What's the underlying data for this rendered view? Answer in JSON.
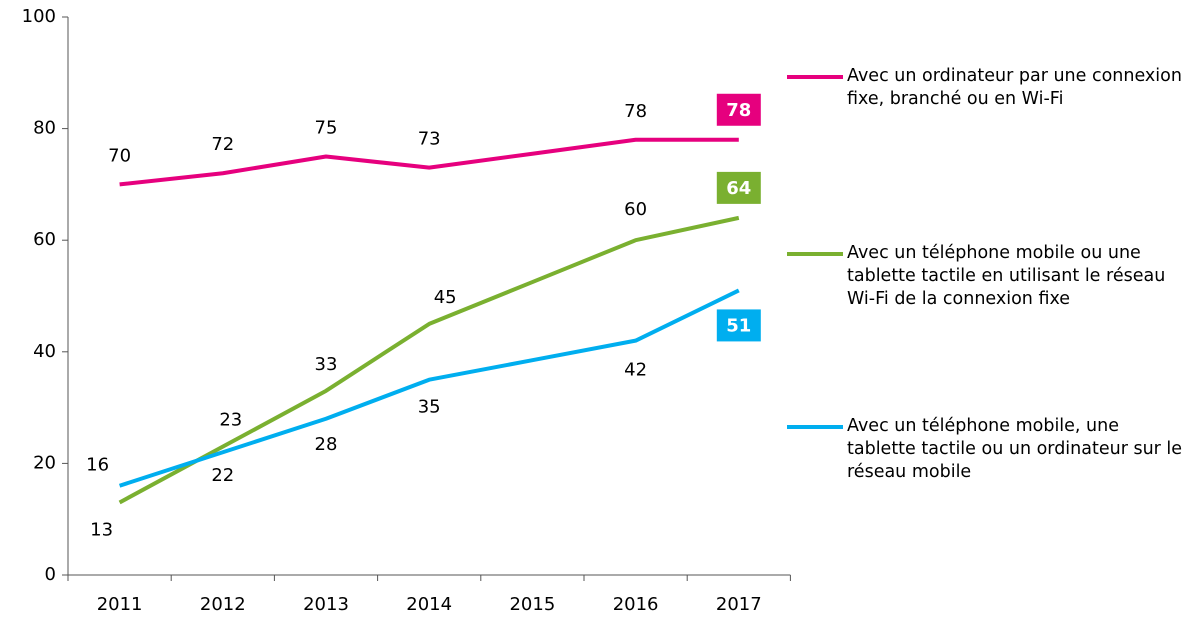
{
  "chart_data": {
    "type": "line",
    "categories": [
      "2011",
      "2012",
      "2013",
      "2014",
      "2015",
      "2016",
      "2017"
    ],
    "series": [
      {
        "name": "Avec un ordinateur par une connexion fixe, branché ou en Wi-Fi",
        "color": "#e6007e",
        "values": [
          70,
          72,
          75,
          73,
          75.5,
          78,
          78
        ],
        "value_labels": [
          "70",
          "72",
          "75",
          "73",
          null,
          "78",
          "78"
        ]
      },
      {
        "name": "Avec un téléphone mobile ou une tablette tactile en utilisant le réseau Wi-Fi de la connexion fixe",
        "color": "#7ab030",
        "values": [
          13,
          23,
          33,
          45,
          52.5,
          60,
          64
        ],
        "value_labels": [
          "13",
          "23",
          "33",
          "45",
          null,
          "60",
          "64"
        ]
      },
      {
        "name": "Avec un téléphone mobile, une tablette tactile ou un ordinateur sur le réseau mobile",
        "color": "#00aeef",
        "values": [
          16,
          22,
          28,
          35,
          38.5,
          42,
          51
        ],
        "value_labels": [
          "16",
          "22",
          "28",
          "35",
          null,
          "42",
          "51"
        ]
      }
    ],
    "ylim": [
      0,
      100
    ],
    "yticks": [
      0,
      20,
      40,
      60,
      80,
      100
    ],
    "grid": false,
    "legend": "right"
  }
}
